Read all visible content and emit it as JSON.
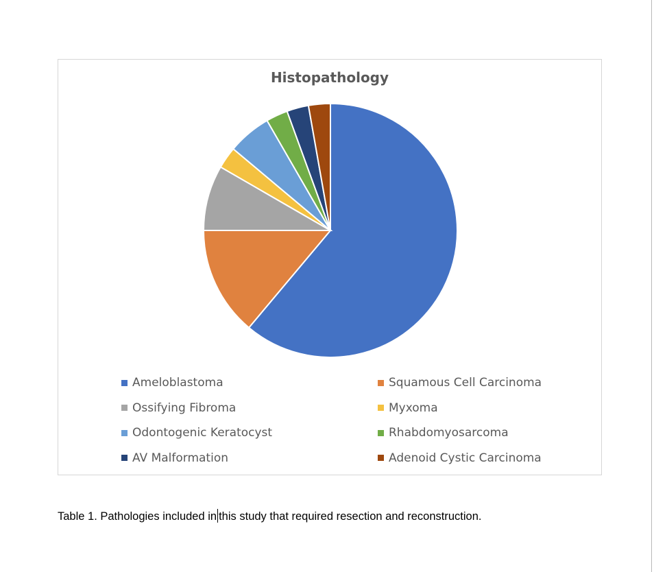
{
  "chart_data": {
    "type": "pie",
    "title": "Histopathology",
    "categories": [
      "Ameloblastoma",
      "Squamous Cell Carcinoma",
      "Ossifying Fibroma",
      "Myxoma",
      "Odontogenic Keratocyst",
      "Rhabdomyosarcoma",
      "AV Malformation",
      "Adenoid Cystic Carcinoma"
    ],
    "values": [
      22,
      5,
      3,
      1,
      2,
      1,
      1,
      1
    ],
    "colors": [
      "#4472C4",
      "#E0823F",
      "#A5A5A5",
      "#F4C140",
      "#6A9ED6",
      "#71AD47",
      "#264478",
      "#9E480E"
    ],
    "legend_placement": "bottom"
  },
  "caption": {
    "before_cursor": "Table 1. Pathologies included in",
    "after_cursor": "this study that required resection and reconstruction."
  }
}
